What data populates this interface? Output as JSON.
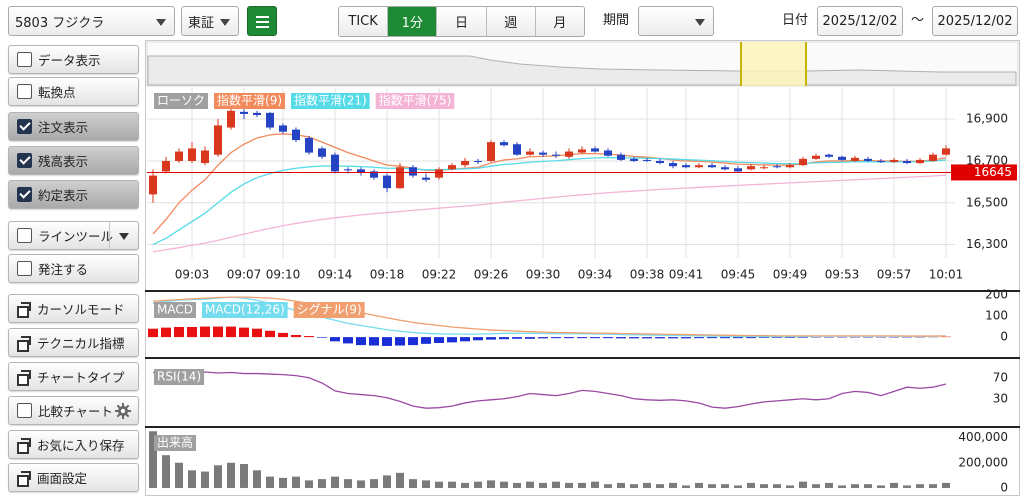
{
  "toolbar": {
    "symbol": "5803 フジクラ",
    "market": "東証",
    "tabs": [
      "TICK",
      "1分",
      "日",
      "週",
      "月"
    ],
    "active_tab": 1,
    "period_label": "期間",
    "date_label": "日付",
    "date_from": "2025/12/02",
    "separator": "～",
    "date_to": "2025/12/02"
  },
  "sidebar": {
    "items": [
      {
        "label": "データ表示",
        "kind": "checkbox",
        "checked": false
      },
      {
        "label": "転換点",
        "kind": "checkbox",
        "checked": false
      },
      {
        "label": "注文表示",
        "kind": "checkbox",
        "checked": true
      },
      {
        "label": "残高表示",
        "kind": "checkbox",
        "checked": true
      },
      {
        "label": "約定表示",
        "kind": "checkbox",
        "checked": true
      },
      {
        "label": "ラインツール",
        "kind": "checkbox",
        "checked": false,
        "menu": true
      },
      {
        "label": "発注する",
        "kind": "checkbox",
        "checked": false
      },
      {
        "label": "カーソルモード",
        "kind": "window"
      },
      {
        "label": "テクニカル指標",
        "kind": "window"
      },
      {
        "label": "チャートタイプ",
        "kind": "window"
      },
      {
        "label": "比較チャート",
        "kind": "checkbox",
        "checked": false,
        "settings": true
      },
      {
        "label": "お気に入り保存",
        "kind": "window"
      },
      {
        "label": "画面設定",
        "kind": "window"
      }
    ]
  },
  "chart_data": [
    {
      "type": "candlestick",
      "categories": [
        null,
        null,
        null,
        "09:03",
        null,
        null,
        null,
        "09:07",
        null,
        null,
        "09:10",
        null,
        null,
        null,
        "09:14",
        null,
        null,
        null,
        "09:18",
        null,
        null,
        null,
        "09:22",
        null,
        null,
        null,
        "09:26",
        null,
        null,
        null,
        "09:30",
        null,
        null,
        null,
        "09:34",
        null,
        null,
        null,
        "09:38",
        null,
        null,
        "09:41",
        null,
        null,
        null,
        "09:45",
        null,
        null,
        null,
        "09:49",
        null,
        null,
        null,
        "09:53",
        null,
        null,
        null,
        "09:57",
        null,
        null,
        null,
        "10:01"
      ],
      "ylim": [
        16250,
        17030
      ],
      "yticks": [
        {
          "value": 16300,
          "label": "16,300"
        },
        {
          "value": 16500,
          "label": "16,500"
        },
        {
          "value": 16700,
          "label": "16,700"
        },
        {
          "value": 16900,
          "label": "16,900"
        }
      ],
      "grid": true,
      "ohlc": {
        "name": "ローソク",
        "up_color": "#d9381e",
        "down_color": "#2444c4",
        "open": [
          16540,
          16650,
          16700,
          16700,
          16690,
          16730,
          16860,
          16935,
          16930,
          16930,
          16870,
          16850,
          16810,
          16760,
          16730,
          16660,
          16660,
          16650,
          16630,
          16570,
          16670,
          16620,
          16620,
          16660,
          16680,
          16700,
          16700,
          16790,
          16780,
          16730,
          16740,
          16730,
          16720,
          16740,
          16760,
          16750,
          16730,
          16710,
          16705,
          16700,
          16690,
          16680,
          16670,
          16680,
          16670,
          16665,
          16660,
          16670,
          16675,
          16670,
          16680,
          16710,
          16730,
          16720,
          16700,
          16710,
          16700,
          16695,
          16700,
          16690,
          16700,
          16730
        ],
        "high": [
          16660,
          16720,
          16760,
          16790,
          16770,
          16900,
          16960,
          16950,
          16940,
          16935,
          16880,
          16860,
          16820,
          16770,
          16740,
          16670,
          16670,
          16660,
          16640,
          16690,
          16680,
          16640,
          16670,
          16690,
          16715,
          16710,
          16800,
          16800,
          16790,
          16760,
          16750,
          16745,
          16760,
          16770,
          16770,
          16760,
          16740,
          16720,
          16715,
          16710,
          16700,
          16690,
          16690,
          16690,
          16680,
          16675,
          16685,
          16680,
          16685,
          16690,
          16720,
          16735,
          16735,
          16725,
          16725,
          16720,
          16710,
          16715,
          16710,
          16715,
          16740,
          16775
        ],
        "low": [
          16500,
          16640,
          16690,
          16690,
          16680,
          16720,
          16850,
          16900,
          16910,
          16850,
          16830,
          16790,
          16730,
          16710,
          16640,
          16640,
          16630,
          16610,
          16550,
          16565,
          16620,
          16600,
          16610,
          16655,
          16670,
          16685,
          16695,
          16770,
          16725,
          16725,
          16720,
          16715,
          16710,
          16735,
          16740,
          16720,
          16700,
          16695,
          16695,
          16685,
          16665,
          16665,
          16665,
          16665,
          16655,
          16645,
          16655,
          16660,
          16665,
          16665,
          16675,
          16705,
          16715,
          16700,
          16695,
          16695,
          16690,
          16690,
          16685,
          16685,
          16695,
          16725
        ],
        "close": [
          16630,
          16700,
          16745,
          16760,
          16750,
          16870,
          16940,
          16925,
          16920,
          16860,
          16840,
          16800,
          16740,
          16720,
          16650,
          16655,
          16645,
          16620,
          16570,
          16670,
          16630,
          16610,
          16660,
          16680,
          16700,
          16695,
          16790,
          16775,
          16730,
          16745,
          16730,
          16725,
          16745,
          16755,
          16745,
          16725,
          16705,
          16700,
          16700,
          16690,
          16675,
          16670,
          16680,
          16670,
          16660,
          16650,
          16675,
          16670,
          16670,
          16680,
          16710,
          16725,
          16720,
          16705,
          16715,
          16700,
          16695,
          16705,
          16690,
          16705,
          16730,
          16760
        ]
      },
      "series": [
        {
          "name": "指数平滑(9)",
          "color": "#f28a5b",
          "values": [
            16350,
            16420,
            16500,
            16560,
            16610,
            16680,
            16740,
            16780,
            16810,
            16825,
            16830,
            16825,
            16815,
            16790,
            16765,
            16740,
            16720,
            16700,
            16680,
            16675,
            16665,
            16655,
            16655,
            16660,
            16665,
            16670,
            16690,
            16705,
            16710,
            16720,
            16722,
            16725,
            16730,
            16735,
            16735,
            16733,
            16728,
            16722,
            16718,
            16712,
            16705,
            16700,
            16698,
            16695,
            16690,
            16685,
            16683,
            16681,
            16680,
            16680,
            16685,
            16695,
            16700,
            16700,
            16702,
            16702,
            16700,
            16700,
            16698,
            16699,
            16705,
            16715
          ]
        },
        {
          "name": "指数平滑(21)",
          "color": "#55dbe8",
          "values": [
            16300,
            16330,
            16370,
            16410,
            16450,
            16500,
            16550,
            16590,
            16620,
            16640,
            16655,
            16665,
            16672,
            16676,
            16676,
            16675,
            16673,
            16670,
            16665,
            16665,
            16662,
            16658,
            16658,
            16660,
            16662,
            16665,
            16675,
            16683,
            16688,
            16694,
            16698,
            16701,
            16706,
            16711,
            16714,
            16716,
            16715,
            16714,
            16713,
            16711,
            16709,
            16706,
            16704,
            16701,
            16698,
            16694,
            16692,
            16690,
            16688,
            16687,
            16688,
            16691,
            16693,
            16694,
            16696,
            16696,
            16696,
            16696,
            16696,
            16697,
            16700,
            16705
          ]
        },
        {
          "name": "指数平滑(75)",
          "color": "#f4b4d6",
          "values": [
            16265,
            16275,
            16285,
            16296,
            16307,
            16320,
            16335,
            16350,
            16364,
            16378,
            16390,
            16401,
            16411,
            16420,
            16428,
            16435,
            16442,
            16448,
            16453,
            16458,
            16464,
            16469,
            16474,
            16479,
            16484,
            16489,
            16496,
            16503,
            16509,
            16515,
            16521,
            16527,
            16533,
            16538,
            16543,
            16548,
            16552,
            16556,
            16560,
            16564,
            16567,
            16570,
            16574,
            16577,
            16580,
            16583,
            16586,
            16589,
            16592,
            16595,
            16598,
            16601,
            16604,
            16607,
            16610,
            16613,
            16616,
            16619,
            16622,
            16625,
            16628,
            16632
          ]
        }
      ],
      "current_price": {
        "value": 16645,
        "color": "#e00000"
      }
    },
    {
      "type": "macd",
      "ylim": [
        -85,
        200
      ],
      "yticks": [
        0,
        100,
        200
      ],
      "histogram": {
        "name": "MACD",
        "up_color": "#e81010",
        "down_color": "#1a2ed6",
        "values": [
          40,
          45,
          48,
          48,
          50,
          50,
          50,
          45,
          40,
          30,
          20,
          10,
          5,
          -3,
          -20,
          -30,
          -38,
          -40,
          -42,
          -40,
          -38,
          -32,
          -28,
          -25,
          -20,
          -15,
          -12,
          -10,
          -8,
          -8,
          -6,
          -5,
          -5,
          -5,
          -5,
          -5,
          -6,
          -6,
          -6,
          -6,
          -6,
          -6,
          -5,
          -5,
          -5,
          -5,
          -5,
          -4,
          -4,
          -4,
          -3,
          -2,
          -2,
          -2,
          -2,
          -2,
          -2,
          -2,
          -2,
          -2,
          -1,
          2
        ]
      },
      "series": [
        {
          "name": "MACD(12,26)",
          "color": "#74dcef",
          "values": [
            160,
            170,
            175,
            178,
            180,
            185,
            190,
            185,
            175,
            160,
            145,
            125,
            110,
            95,
            80,
            65,
            55,
            45,
            35,
            28,
            22,
            18,
            15,
            14,
            14,
            14,
            16,
            18,
            18,
            18,
            17,
            16,
            16,
            16,
            15,
            14,
            12,
            11,
            10,
            9,
            8,
            7,
            6,
            5,
            4,
            3,
            3,
            2,
            2,
            2,
            3,
            4,
            4,
            4,
            4,
            4,
            4,
            4,
            3,
            3,
            4,
            6
          ]
        },
        {
          "name": "シグナル(9)",
          "color": "#f0a070",
          "values": [
            170,
            175,
            178,
            182,
            185,
            188,
            190,
            190,
            188,
            185,
            180,
            170,
            160,
            150,
            140,
            128,
            116,
            104,
            92,
            80,
            70,
            62,
            55,
            48,
            43,
            38,
            34,
            31,
            28,
            26,
            24,
            22,
            21,
            20,
            19,
            18,
            17,
            16,
            15,
            14,
            13,
            12,
            11,
            10,
            9,
            8,
            7,
            7,
            6,
            6,
            6,
            6,
            6,
            6,
            6,
            6,
            6,
            6,
            5,
            5,
            5,
            5
          ]
        }
      ]
    },
    {
      "type": "line",
      "ylim": [
        -20,
        100
      ],
      "yticks": [
        30,
        70
      ],
      "series": [
        {
          "name": "RSI(14)",
          "color": "#9a4aa2",
          "values": [
            80,
            80,
            79,
            80,
            81,
            79,
            80,
            78,
            78,
            77,
            76,
            74,
            70,
            60,
            45,
            40,
            38,
            36,
            32,
            25,
            16,
            12,
            13,
            16,
            22,
            26,
            28,
            30,
            34,
            40,
            38,
            36,
            40,
            46,
            44,
            40,
            36,
            30,
            28,
            27,
            28,
            26,
            22,
            14,
            12,
            15,
            20,
            24,
            26,
            28,
            30,
            28,
            30,
            40,
            44,
            42,
            36,
            44,
            52,
            50,
            52,
            58
          ]
        }
      ]
    },
    {
      "type": "bar",
      "name": "出来高",
      "color": "#7a7a7a",
      "ylim": [
        -40000,
        460000
      ],
      "yticks": [
        0,
        {
          "value": 200000,
          "label": "200,000"
        },
        {
          "value": 400000,
          "label": "400,000"
        }
      ],
      "values": [
        450000,
        260000,
        200000,
        140000,
        130000,
        180000,
        200000,
        190000,
        140000,
        90000,
        80000,
        90000,
        60000,
        70000,
        90000,
        70000,
        60000,
        70000,
        100000,
        120000,
        70000,
        60000,
        50000,
        50000,
        40000,
        50000,
        60000,
        50000,
        40000,
        50000,
        40000,
        50000,
        40000,
        40000,
        50000,
        30000,
        40000,
        30000,
        40000,
        30000,
        40000,
        20000,
        40000,
        30000,
        30000,
        20000,
        40000,
        30000,
        30000,
        20000,
        50000,
        30000,
        40000,
        20000,
        30000,
        30000,
        20000,
        40000,
        20000,
        30000,
        30000,
        40000
      ]
    }
  ]
}
